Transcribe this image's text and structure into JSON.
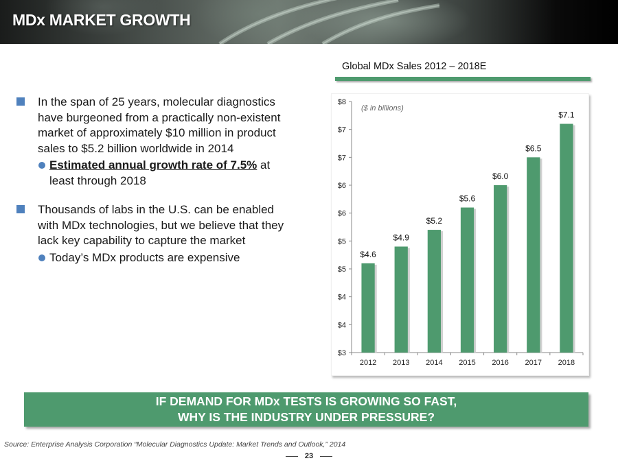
{
  "header": {
    "title": "MDx MARKET GROWTH"
  },
  "bullets": [
    {
      "text": "In the span of 25 years, molecular diagnostics have burgeoned from a practically non-existent market of  approximately $10 million in product sales to $5.2 billion worldwide in 2014",
      "sub": {
        "emphasis": "Estimated annual growth rate of 7.5%",
        "rest": " at least through 2018"
      }
    },
    {
      "text": "Thousands of labs in the U.S. can be enabled with MDx technologies, but we believe that they lack key capability to capture the market",
      "sub": {
        "emphasis": "",
        "rest": "Today’s MDx products are expensive"
      }
    }
  ],
  "chart_heading": "Global MDx Sales  2012 – 2018E",
  "chart_data": {
    "type": "bar",
    "title": "Global MDx Sales  2012 – 2018E",
    "annotation": "($ in billions)",
    "categories": [
      "2012",
      "2013",
      "2014",
      "2015",
      "2016",
      "2017",
      "2018"
    ],
    "values": [
      4.6,
      4.9,
      5.2,
      5.6,
      6.0,
      6.5,
      7.1
    ],
    "data_labels": [
      "$4.6",
      "$4.9",
      "$5.2",
      "$5.6",
      "$6.0",
      "$6.5",
      "$7.1"
    ],
    "ylim": [
      3,
      7.5
    ],
    "yticks": [
      3,
      3.5,
      4,
      4.5,
      5,
      5.5,
      6,
      6.5,
      7,
      7.5
    ],
    "ytick_labels": [
      "$3",
      "$4",
      "$4",
      "$5",
      "$5",
      "$6",
      "$6",
      "$7",
      "$7",
      "$8"
    ],
    "xlabel": "",
    "ylabel": "",
    "grid": false,
    "bar_color": "#4e9a6e"
  },
  "callout": {
    "line1": "IF DEMAND FOR MDx TESTS IS GROWING SO FAST,",
    "line2": "WHY IS THE INDUSTRY UNDER PRESSURE?"
  },
  "source": "Source: Enterprise Analysis Corporation “Molecular Diagnostics Update: Market Trends and Outlook,” 2014",
  "page_number": "23",
  "colors": {
    "accent_green": "#4e9a6e",
    "bullet_blue": "#4f81bd"
  }
}
